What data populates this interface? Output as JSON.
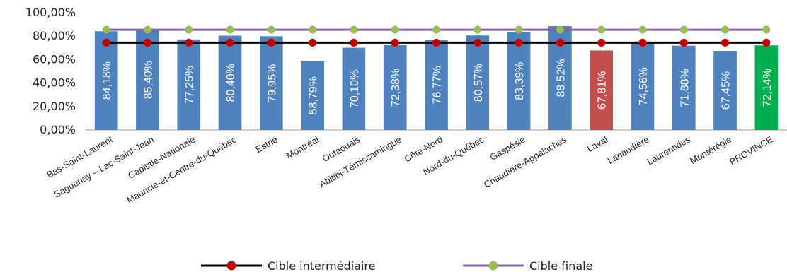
{
  "chart_data": {
    "type": "bar",
    "categories": [
      "Bas-Saint-Laurent",
      "Saguenay – Lac-Saint-Jean",
      "Capitale-Nationale",
      "Mauricie-et-Centre-du-Québec",
      "Estrie",
      "Montréal",
      "Outaouais",
      "Abitibi-Témiscamingue",
      "Côte-Nord",
      "Nord-du-Québec",
      "Gaspésie",
      "Chaudière-Appalaches",
      "Laval",
      "Lanaudière",
      "Laurentides",
      "Montérégie",
      "PROVINCE"
    ],
    "values": [
      84.18,
      85.4,
      77.25,
      80.4,
      79.95,
      58.79,
      70.1,
      72.38,
      76.77,
      80.57,
      83.39,
      88.52,
      67.81,
      74.56,
      71.88,
      67.45,
      72.14
    ],
    "value_labels": [
      "84,18%",
      "85,40%",
      "77,25%",
      "80,40%",
      "79,95%",
      "58,79%",
      "70,10%",
      "72,38%",
      "76,77%",
      "80,57%",
      "83,39%",
      "88,52%",
      "67,81%",
      "74,56%",
      "71,88%",
      "67,45%",
      "72,14%"
    ],
    "bar_colors": [
      "#4f81bd",
      "#4f81bd",
      "#4f81bd",
      "#4f81bd",
      "#4f81bd",
      "#4f81bd",
      "#4f81bd",
      "#4f81bd",
      "#4f81bd",
      "#4f81bd",
      "#4f81bd",
      "#4f81bd",
      "#c0504d",
      "#4f81bd",
      "#4f81bd",
      "#4f81bd",
      "#00b050"
    ],
    "yticks": [
      0,
      20,
      40,
      60,
      80,
      100
    ],
    "ytick_labels": [
      "0,00%",
      "20,00%",
      "40,00%",
      "60,00%",
      "80,00%",
      "100,00%"
    ],
    "ylim": [
      0,
      100
    ],
    "grid": false,
    "legend_position": "bottom",
    "lines": [
      {
        "name": "Cible intermédiaire",
        "value": 74.5,
        "line_color": "#000000",
        "marker_color": "#c00000"
      },
      {
        "name": "Cible finale",
        "value": 85.5,
        "line_color": "#8064a2",
        "marker_color": "#9bbb59"
      }
    ]
  }
}
